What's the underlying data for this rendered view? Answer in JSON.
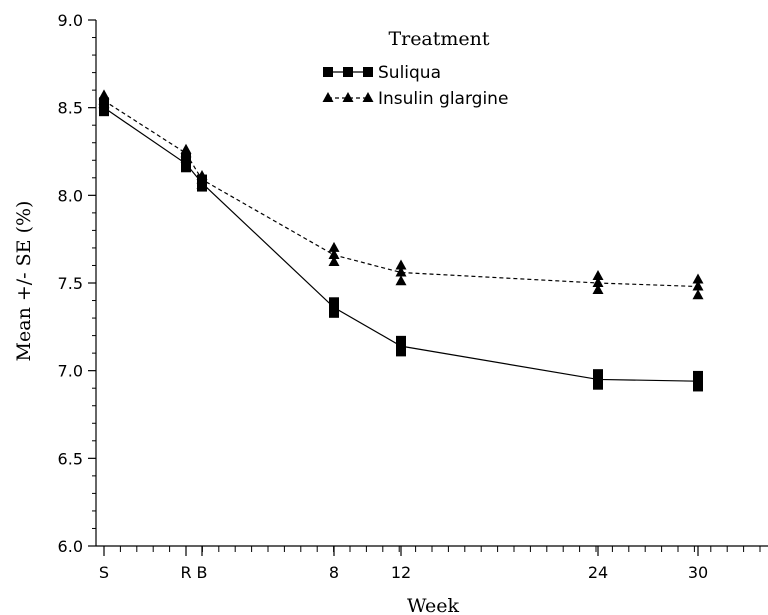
{
  "chart_data": {
    "type": "line",
    "xlabel": "Week",
    "ylabel": "Mean +/- SE (%)",
    "ylim": [
      6.0,
      9.0
    ],
    "yticks": [
      "6.0",
      "6.5",
      "7.0",
      "7.5",
      "8.0",
      "8.5",
      "9.0"
    ],
    "xtick_labels": [
      "S",
      "R",
      "B",
      "8",
      "12",
      "24",
      "30"
    ],
    "legend": {
      "title": "Treatment",
      "placement": "top-center"
    },
    "x": [
      "S",
      "R",
      "B",
      "8",
      "12",
      "24",
      "30"
    ],
    "series": [
      {
        "name": "Suliqua",
        "marker": "square",
        "line": "solid",
        "values": [
          8.5,
          8.18,
          8.07,
          7.36,
          7.14,
          6.95,
          6.94
        ],
        "se_low": [
          8.48,
          8.16,
          8.05,
          7.33,
          7.11,
          6.92,
          6.91
        ],
        "se_high": [
          8.53,
          8.21,
          8.09,
          7.39,
          7.17,
          6.98,
          6.97
        ]
      },
      {
        "name": "Insulin glargine",
        "marker": "triangle",
        "line": "dashed",
        "values": [
          8.54,
          8.24,
          8.09,
          7.66,
          7.56,
          7.5,
          7.48
        ],
        "se_low": [
          8.52,
          8.21,
          8.06,
          7.62,
          7.51,
          7.46,
          7.43
        ],
        "se_high": [
          8.57,
          8.26,
          8.11,
          7.7,
          7.6,
          7.54,
          7.52
        ]
      }
    ]
  }
}
